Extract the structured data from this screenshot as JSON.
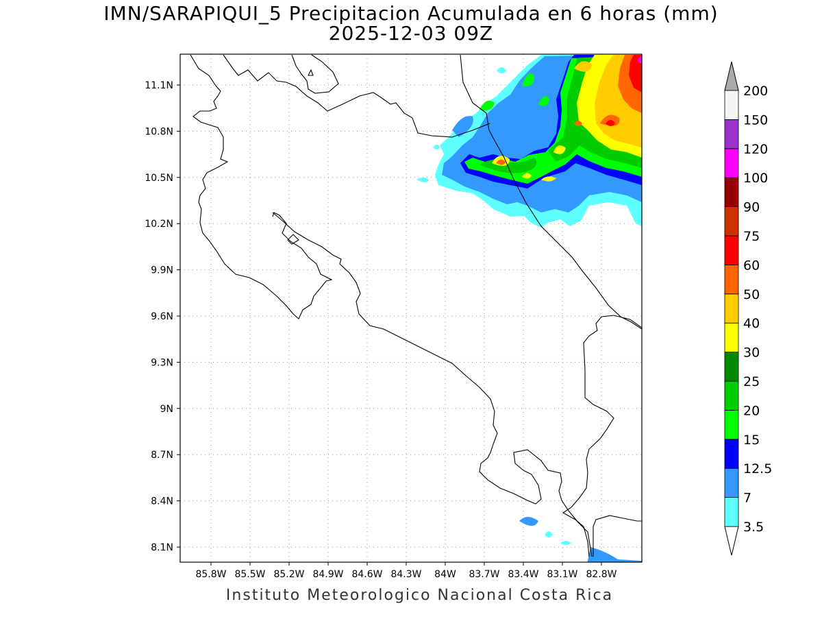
{
  "title": {
    "line1": "IMN/SARAPIQUI_5 Precipitacion Acumulada en 6 horas (mm)",
    "line2": "2025-12-03 09Z"
  },
  "footer": "Instituto Meteorologico Nacional Costa Rica",
  "map": {
    "lon_range": [
      -86.0,
      -83.0
    ],
    "lat_range": [
      8.0,
      11.3
    ],
    "lon_ticks": [
      {
        "value": -85.8,
        "label": "85.8W"
      },
      {
        "value": -85.5,
        "label": "85.5W"
      },
      {
        "value": -85.2,
        "label": "85.2W"
      },
      {
        "value": -84.9,
        "label": "84.9W"
      },
      {
        "value": -84.6,
        "label": "84.6W"
      },
      {
        "value": -84.3,
        "label": "84.3W"
      },
      {
        "value": -84.0,
        "label": "84W"
      },
      {
        "value": -83.7,
        "label": "83.7W"
      },
      {
        "value": -83.4,
        "label": "83.4W"
      },
      {
        "value": -83.1,
        "label": "83.1W"
      },
      {
        "value": -82.8,
        "label": "82.8W"
      }
    ],
    "lat_ticks": [
      {
        "value": 11.1,
        "label": "11.1N"
      },
      {
        "value": 10.8,
        "label": "10.8N"
      },
      {
        "value": 10.5,
        "label": "10.5N"
      },
      {
        "value": 10.2,
        "label": "10.2N"
      },
      {
        "value": 9.9,
        "label": "9.9N"
      },
      {
        "value": 9.6,
        "label": "9.6N"
      },
      {
        "value": 9.3,
        "label": "9.3N"
      },
      {
        "value": 9.0,
        "label": "9N"
      },
      {
        "value": 8.7,
        "label": "8.7N"
      },
      {
        "value": 8.4,
        "label": "8.4N"
      },
      {
        "value": 8.1,
        "label": "8.1N"
      }
    ],
    "grid": true
  },
  "colorbar": {
    "levels": [
      {
        "label": "3.5",
        "color": "#5effff"
      },
      {
        "label": "7",
        "color": "#3399ff"
      },
      {
        "label": "12.5",
        "color": "#0000ff"
      },
      {
        "label": "15",
        "color": "#00ff00"
      },
      {
        "label": "20",
        "color": "#00cc00"
      },
      {
        "label": "25",
        "color": "#008800"
      },
      {
        "label": "30",
        "color": "#ffff00"
      },
      {
        "label": "40",
        "color": "#ffcc00"
      },
      {
        "label": "50",
        "color": "#ff6600"
      },
      {
        "label": "60",
        "color": "#ff0000"
      },
      {
        "label": "75",
        "color": "#cc3300"
      },
      {
        "label": "90",
        "color": "#990000"
      },
      {
        "label": "100",
        "color": "#ff00ff"
      },
      {
        "label": "120",
        "color": "#9933cc"
      },
      {
        "label": "150",
        "color": "#f5f5f5"
      },
      {
        "label": "200",
        "color": ""
      }
    ],
    "min_arrow_color": "#ffffff",
    "max_arrow_color": "#aaaaaa"
  }
}
